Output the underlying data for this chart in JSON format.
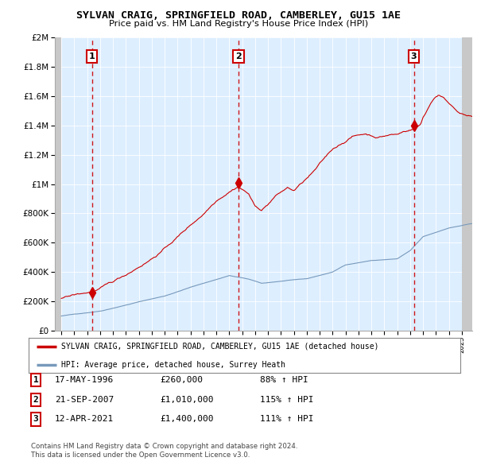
{
  "title": "SYLVAN CRAIG, SPRINGFIELD ROAD, CAMBERLEY, GU15 1AE",
  "subtitle": "Price paid vs. HM Land Registry's House Price Index (HPI)",
  "legend_line1": "SYLVAN CRAIG, SPRINGFIELD ROAD, CAMBERLEY, GU15 1AE (detached house)",
  "legend_line2": "HPI: Average price, detached house, Surrey Heath",
  "footer1": "Contains HM Land Registry data © Crown copyright and database right 2024.",
  "footer2": "This data is licensed under the Open Government Licence v3.0.",
  "table": [
    {
      "num": "1",
      "date": "17-MAY-1996",
      "price": "£260,000",
      "hpi": "88% ↑ HPI"
    },
    {
      "num": "2",
      "date": "21-SEP-2007",
      "price": "£1,010,000",
      "hpi": "115% ↑ HPI"
    },
    {
      "num": "3",
      "date": "12-APR-2021",
      "price": "£1,400,000",
      "hpi": "111% ↑ HPI"
    }
  ],
  "purchase_years": [
    1996.38,
    2007.72,
    2021.28
  ],
  "purchase_prices": [
    260000,
    1010000,
    1400000
  ],
  "red_line_color": "#cc0000",
  "blue_line_color": "#7799bb",
  "vline_color": "#cc0000",
  "ylim": [
    0,
    2000000
  ],
  "xlim_start": 1993.5,
  "xlim_end": 2025.8
}
